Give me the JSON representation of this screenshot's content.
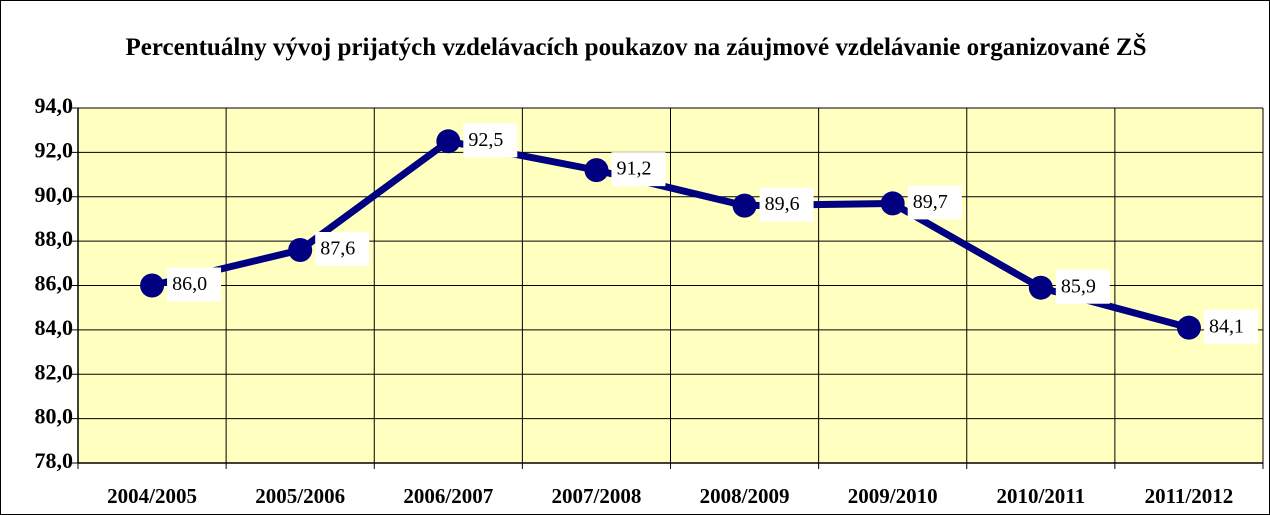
{
  "chart_data": {
    "type": "line",
    "title": "Percentuálny vývoj prijatých vzdelávacích poukazov  na záujmové vzdelávanie organizované ZŠ",
    "categories": [
      "2004/2005",
      "2005/2006",
      "2006/2007",
      "2007/2008",
      "2008/2009",
      "2009/2010",
      "2010/2011",
      "2011/2012"
    ],
    "values": [
      86.0,
      87.6,
      92.5,
      91.2,
      89.6,
      89.7,
      85.9,
      84.1
    ],
    "value_labels": [
      "86,0",
      "87,6",
      "92,5",
      "91,2",
      "89,6",
      "89,7",
      "85,9",
      "84,1"
    ],
    "color": "#000080",
    "ylim": [
      78,
      94
    ],
    "yticks": [
      {
        "value": 78,
        "label": "78,0"
      },
      {
        "value": 80,
        "label": "80,0"
      },
      {
        "value": 82,
        "label": "82,0"
      },
      {
        "value": 84,
        "label": "84,0"
      },
      {
        "value": 86,
        "label": "86,0"
      },
      {
        "value": 88,
        "label": "88,0"
      },
      {
        "value": 90,
        "label": "90,0"
      },
      {
        "value": 92,
        "label": "92,0"
      },
      {
        "value": 94,
        "label": "94,0"
      }
    ],
    "grid": true
  }
}
